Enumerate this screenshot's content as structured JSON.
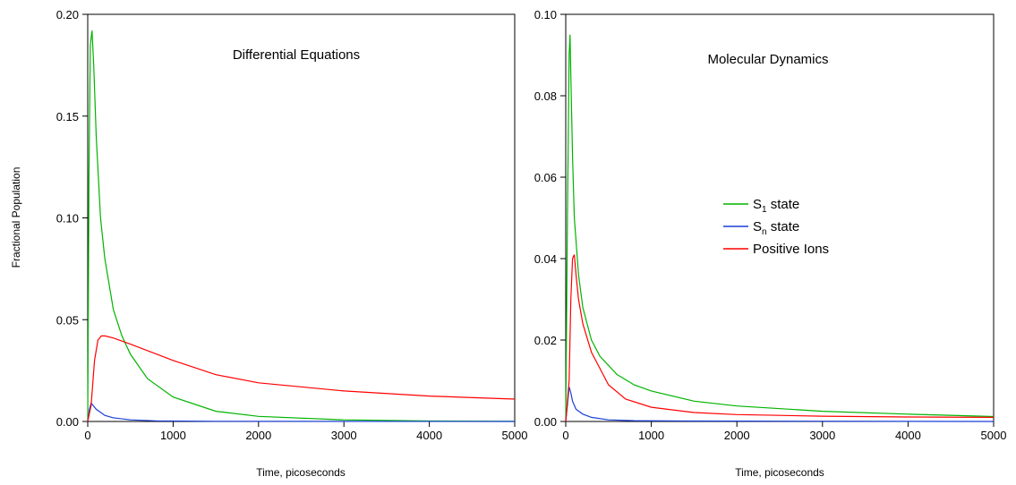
{
  "chart_data": [
    {
      "type": "line",
      "title": "Differential Equations",
      "xlabel": "Time, picoseconds",
      "ylabel": "Fractional Population",
      "xlim": [
        0,
        5000
      ],
      "ylim": [
        0,
        0.2
      ],
      "xticks": [
        "0",
        "1000",
        "2000",
        "3000",
        "4000",
        "5000"
      ],
      "yticks": [
        "0.00",
        "0.05",
        "0.10",
        "0.15",
        "0.20"
      ],
      "grid": false,
      "series": [
        {
          "color": "#00b400",
          "x": [
            0,
            15,
            30,
            50,
            70,
            100,
            150,
            200,
            300,
            400,
            500,
            700,
            1000,
            1500,
            2000,
            3000,
            4000,
            5000
          ],
          "y": [
            0,
            0.12,
            0.185,
            0.192,
            0.175,
            0.14,
            0.1,
            0.08,
            0.055,
            0.042,
            0.033,
            0.021,
            0.012,
            0.005,
            0.0025,
            0.0008,
            0.0002,
            0.0001
          ]
        },
        {
          "color": "#1a3fd6",
          "x": [
            0,
            20,
            40,
            60,
            100,
            150,
            200,
            300,
            500,
            800,
            1500,
            5000
          ],
          "y": [
            0,
            0.006,
            0.009,
            0.008,
            0.006,
            0.0045,
            0.003,
            0.0018,
            0.0008,
            0.0003,
            0.0001,
            0
          ]
        },
        {
          "color": "#ff0000",
          "x": [
            0,
            40,
            80,
            120,
            160,
            200,
            300,
            500,
            1000,
            1500,
            2000,
            3000,
            4000,
            5000
          ],
          "y": [
            0,
            0.008,
            0.03,
            0.04,
            0.042,
            0.042,
            0.041,
            0.038,
            0.03,
            0.023,
            0.019,
            0.015,
            0.0125,
            0.011
          ]
        }
      ]
    },
    {
      "type": "line",
      "title": "Molecular Dynamics",
      "xlabel": "Time, picoseconds",
      "ylabel": "",
      "xlim": [
        0,
        5000
      ],
      "ylim": [
        0,
        0.1
      ],
      "xticks": [
        "0",
        "1000",
        "2000",
        "3000",
        "4000",
        "5000"
      ],
      "yticks": [
        "0.00",
        "0.02",
        "0.04",
        "0.06",
        "0.08",
        "0.10"
      ],
      "grid": false,
      "legend_position": "right-center",
      "legend": [
        {
          "base": "S",
          "sub": "1",
          "suffix": " state",
          "color": "#00b400"
        },
        {
          "base": "S",
          "sub": "n",
          "suffix": " state",
          "color": "#1a3fd6"
        },
        {
          "base": "Positive Ions",
          "sub": "",
          "suffix": "",
          "color": "#ff0000"
        }
      ],
      "series": [
        {
          "color": "#00b400",
          "x": [
            0,
            20,
            40,
            50,
            60,
            80,
            100,
            150,
            200,
            300,
            400,
            600,
            800,
            1000,
            1500,
            2000,
            3000,
            4000,
            5000
          ],
          "y": [
            0,
            0.05,
            0.09,
            0.095,
            0.085,
            0.065,
            0.05,
            0.036,
            0.028,
            0.02,
            0.016,
            0.0115,
            0.009,
            0.0075,
            0.005,
            0.0038,
            0.0025,
            0.0018,
            0.0012
          ]
        },
        {
          "color": "#1a3fd6",
          "x": [
            0,
            20,
            40,
            60,
            80,
            120,
            200,
            300,
            500,
            800,
            1500,
            5000
          ],
          "y": [
            0,
            0.004,
            0.0085,
            0.007,
            0.005,
            0.003,
            0.0018,
            0.001,
            0.0004,
            0.0002,
            0.0001,
            0
          ]
        },
        {
          "color": "#ff0000",
          "x": [
            0,
            40,
            60,
            80,
            100,
            120,
            150,
            200,
            300,
            500,
            700,
            1000,
            1500,
            2000,
            3000,
            4000,
            5000
          ],
          "y": [
            0,
            0.01,
            0.03,
            0.04,
            0.041,
            0.036,
            0.03,
            0.024,
            0.017,
            0.009,
            0.0055,
            0.0035,
            0.0022,
            0.0017,
            0.0013,
            0.0011,
            0.001
          ]
        }
      ]
    }
  ]
}
